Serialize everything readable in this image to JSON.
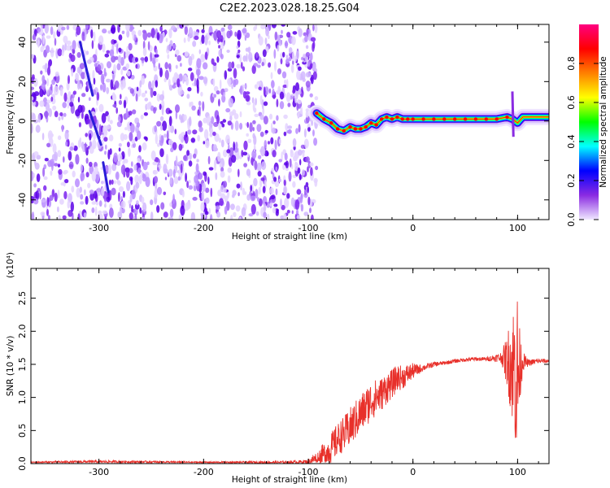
{
  "chart_data": [
    {
      "type": "heatmap",
      "title": "C2E2.2023.028.18.25.G04",
      "xlabel": "Height of straight line (km)",
      "ylabel": "Frequency (Hz)",
      "xlim": [
        -365,
        130
      ],
      "ylim": [
        -50,
        49
      ],
      "x_ticks": [
        -300,
        -200,
        -100,
        0,
        100
      ],
      "y_ticks": [
        -40,
        -20,
        0,
        20,
        40
      ],
      "colorbar": {
        "label": "Normalized spectral amplitude",
        "range": [
          0,
          1
        ],
        "ticks": [
          0.0,
          0.2,
          0.4,
          0.6,
          0.8
        ],
        "colormap": [
          "#f0e8ff",
          "#8a2be2",
          "#0000ff",
          "#00ffff",
          "#00ff00",
          "#ffff00",
          "#ff8000",
          "#ff0000",
          "#ff0080"
        ]
      },
      "noise_region": [
        -365,
        -92
      ],
      "signal_trace": {
        "x": [
          -92,
          -85,
          -78,
          -72,
          -66,
          -60,
          -55,
          -50,
          -45,
          -40,
          -35,
          -30,
          -25,
          -20,
          -15,
          -10,
          -5,
          0,
          10,
          20,
          30,
          40,
          50,
          60,
          70,
          80,
          90,
          95,
          100,
          105,
          110,
          120,
          130
        ],
        "y": [
          4,
          1,
          -1,
          -4,
          -5,
          -3,
          -4,
          -4,
          -3,
          -1,
          -2,
          1,
          2,
          1,
          2,
          1,
          1,
          1,
          1,
          1,
          1,
          1,
          1,
          1,
          1,
          1,
          2,
          1,
          -1,
          2,
          2,
          2,
          2
        ]
      }
    },
    {
      "type": "line",
      "xlabel": "Height of straight line (km)",
      "ylabel": "SNR (10 * v/v)",
      "y_multiplier": "(x10⁴)",
      "xlim": [
        -365,
        130
      ],
      "ylim": [
        0,
        2.95
      ],
      "x_ticks": [
        -300,
        -200,
        -100,
        0,
        100
      ],
      "y_ticks": [
        0.0,
        0.5,
        1.0,
        1.5,
        2.0,
        2.5
      ],
      "series": [
        {
          "color": "#e8302a",
          "x": [
            -365,
            -300,
            -200,
            -120,
            -100,
            -90,
            -80,
            -75,
            -70,
            -65,
            -60,
            -55,
            -50,
            -45,
            -40,
            -35,
            -30,
            -25,
            -20,
            -15,
            -10,
            -5,
            0,
            5,
            10,
            20,
            30,
            40,
            50,
            60,
            70,
            80,
            85,
            90,
            95,
            98,
            100,
            102,
            105,
            110,
            120,
            130
          ],
          "y": [
            0.02,
            0.03,
            0.02,
            0.02,
            0.03,
            0.1,
            0.2,
            0.3,
            0.4,
            0.45,
            0.55,
            0.65,
            0.75,
            0.85,
            0.95,
            1.0,
            1.05,
            1.15,
            1.2,
            1.3,
            1.3,
            1.35,
            1.4,
            1.42,
            1.45,
            1.5,
            1.52,
            1.55,
            1.57,
            1.58,
            1.58,
            1.6,
            1.6,
            1.55,
            1.5,
            1.4,
            1.3,
            1.45,
            1.55,
            1.52,
            1.55,
            1.55
          ],
          "noise_amplitude": [
            0.01,
            0.02,
            0.01,
            0.02,
            0.03,
            0.12,
            0.22,
            0.25,
            0.25,
            0.28,
            0.3,
            0.3,
            0.3,
            0.3,
            0.3,
            0.28,
            0.25,
            0.25,
            0.22,
            0.2,
            0.18,
            0.15,
            0.12,
            0.08,
            0.05,
            0.04,
            0.03,
            0.03,
            0.03,
            0.03,
            0.03,
            0.06,
            0.1,
            0.4,
            0.9,
            1.2,
            1.4,
            0.6,
            0.15,
            0.05,
            0.04,
            0.03
          ]
        }
      ]
    }
  ]
}
